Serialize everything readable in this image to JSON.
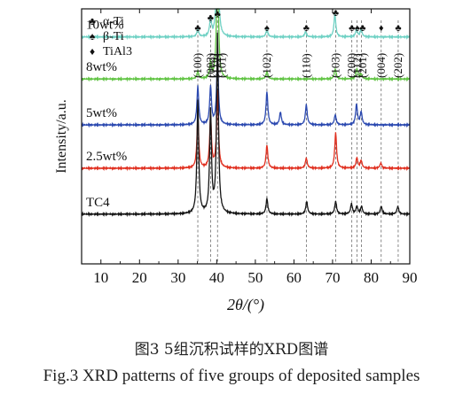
{
  "caption": {
    "cn": "图3  5组沉积试样的XRD图谱",
    "en": "Fig.3  XRD patterns of five groups of deposited samples"
  },
  "chart_data": {
    "type": "line",
    "title": "",
    "xlabel": "2θ/(°)",
    "ylabel": "Intensity/a.u.",
    "xlim": [
      5,
      90
    ],
    "xticks": [
      10,
      20,
      30,
      40,
      50,
      60,
      70,
      80,
      90
    ],
    "grid": false,
    "legend_position": "top-left",
    "legend": [
      {
        "symbol": "♣",
        "label": "α-Ti"
      },
      {
        "symbol": "♠",
        "label": "β-Ti"
      },
      {
        "symbol": "♦",
        "label": "TiAl3"
      }
    ],
    "series": [
      {
        "name": "10wt%",
        "color": "#6fd1c4",
        "baseline": 0.89,
        "peaks": [
          [
            35.1,
            0.03
          ],
          [
            38.4,
            0.07
          ],
          [
            40.2,
            0.5
          ],
          [
            53.0,
            0.03
          ],
          [
            63.0,
            0.02
          ],
          [
            70.6,
            0.09
          ],
          [
            76.2,
            0.03
          ],
          [
            77.4,
            0.03
          ]
        ]
      },
      {
        "name": "8wt%",
        "color": "#61c444",
        "baseline": 0.725,
        "peaks": [
          [
            35.1,
            0.03
          ],
          [
            38.4,
            0.06
          ],
          [
            40.2,
            0.5
          ],
          [
            53.0,
            0.03
          ],
          [
            70.7,
            0.04
          ],
          [
            76.3,
            0.04
          ],
          [
            77.4,
            0.02
          ]
        ]
      },
      {
        "name": "5wt%",
        "color": "#2b49b0",
        "baseline": 0.545,
        "peaks": [
          [
            35.1,
            0.15
          ],
          [
            38.4,
            0.15
          ],
          [
            40.2,
            0.27
          ],
          [
            53.0,
            0.13
          ],
          [
            56.5,
            0.05
          ],
          [
            63.2,
            0.08
          ],
          [
            70.7,
            0.04
          ],
          [
            76.2,
            0.08
          ],
          [
            77.4,
            0.05
          ]
        ]
      },
      {
        "name": "2.5wt%",
        "color": "#e03020",
        "baseline": 0.375,
        "peaks": [
          [
            35.1,
            0.2
          ],
          [
            38.4,
            0.2
          ],
          [
            40.2,
            0.3
          ],
          [
            53.0,
            0.09
          ],
          [
            63.2,
            0.04
          ],
          [
            70.8,
            0.14
          ],
          [
            76.3,
            0.04
          ],
          [
            77.4,
            0.03
          ],
          [
            82.5,
            0.02
          ]
        ]
      },
      {
        "name": "TC4",
        "color": "#151515",
        "baseline": 0.195,
        "peaks": [
          [
            35.1,
            0.44
          ],
          [
            38.4,
            0.4
          ],
          [
            40.2,
            0.7
          ],
          [
            53.0,
            0.06
          ],
          [
            63.3,
            0.05
          ],
          [
            70.8,
            0.05
          ],
          [
            74.9,
            0.04
          ],
          [
            76.3,
            0.03
          ],
          [
            77.5,
            0.03
          ],
          [
            82.6,
            0.03
          ],
          [
            86.9,
            0.03
          ]
        ]
      }
    ],
    "reference_lines": [
      35.1,
      38.4,
      40.2,
      53.0,
      63.2,
      70.8,
      75.0,
      76.3,
      77.5,
      82.6,
      87.0
    ],
    "annotations": [
      {
        "label": "(100)",
        "x": 35.1
      },
      {
        "label": "(002)",
        "x": 38.4
      },
      {
        "label": "(110)",
        "x": 39.1
      },
      {
        "label": "(112)",
        "x": 40.2
      },
      {
        "label": "(101)",
        "x": 41.4
      },
      {
        "label": "(102)",
        "x": 53.0
      },
      {
        "label": "(110)",
        "x": 63.2
      },
      {
        "label": "(103)",
        "x": 70.8
      },
      {
        "label": "(200)",
        "x": 75.0
      },
      {
        "label": "(112)",
        "x": 76.4
      },
      {
        "label": "(201)",
        "x": 77.8
      },
      {
        "label": "(004)",
        "x": 82.6
      },
      {
        "label": "(202)",
        "x": 87.0
      }
    ],
    "markers": [
      {
        "x": 35.1,
        "y": 0.93,
        "symbol": "♣"
      },
      {
        "x": 38.4,
        "y": 0.97,
        "symbol": "♣"
      },
      {
        "x": 40.2,
        "y": 0.985,
        "symbol": "♣"
      },
      {
        "x": 53.0,
        "y": 0.93,
        "symbol": "♠"
      },
      {
        "x": 63.2,
        "y": 0.93,
        "symbol": "♣"
      },
      {
        "x": 70.8,
        "y": 0.99,
        "symbol": "♣"
      },
      {
        "x": 75.0,
        "y": 0.93,
        "symbol": "♣"
      },
      {
        "x": 76.4,
        "y": 0.93,
        "symbol": "♠"
      },
      {
        "x": 77.8,
        "y": 0.93,
        "symbol": "♣"
      },
      {
        "x": 82.6,
        "y": 0.93,
        "symbol": "♦"
      },
      {
        "x": 87.0,
        "y": 0.93,
        "symbol": "♣"
      }
    ]
  }
}
